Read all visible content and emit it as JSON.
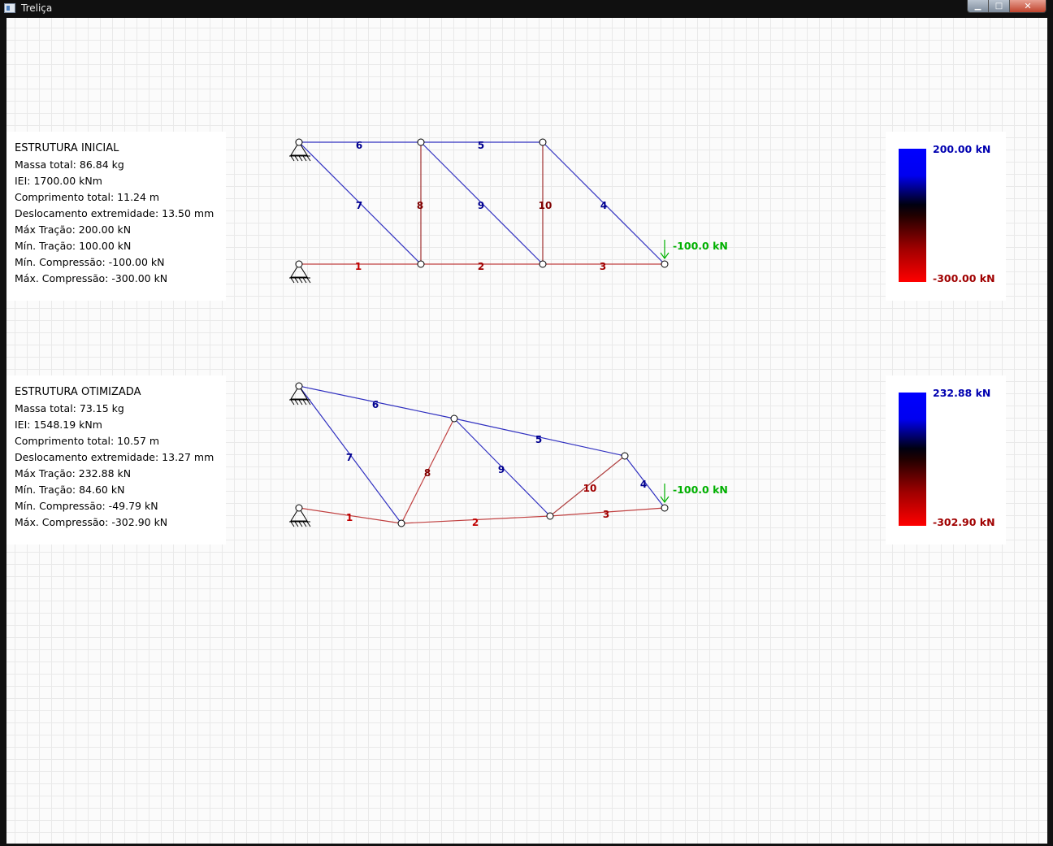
{
  "window": {
    "title": "Treliça"
  },
  "colors": {
    "tension": "#0000b0",
    "compression": "#a00000",
    "load": "#00b000"
  },
  "initial": {
    "heading": "ESTRUTURA INICIAL",
    "stats": [
      "Massa total: 86.84 kg",
      "IEI: 1700.00 kNm",
      "Comprimento total: 11.24 m",
      "Deslocamento extremidade: 13.50 mm",
      "Máx Tração: 200.00 kN",
      "Mín. Tração: 100.00 kN",
      "Mín. Compressão: -100.00 kN",
      "Máx. Compressão: -300.00 kN"
    ],
    "legend": {
      "max": "200.00 kN",
      "min": "-300.00 kN"
    },
    "load_label": "-100.0 kN",
    "members": [
      {
        "id": "1",
        "state": "compression"
      },
      {
        "id": "2",
        "state": "compression"
      },
      {
        "id": "3",
        "state": "compression"
      },
      {
        "id": "4",
        "state": "tension"
      },
      {
        "id": "5",
        "state": "tension"
      },
      {
        "id": "6",
        "state": "tension"
      },
      {
        "id": "7",
        "state": "tension"
      },
      {
        "id": "8",
        "state": "compression"
      },
      {
        "id": "9",
        "state": "tension"
      },
      {
        "id": "10",
        "state": "compression"
      }
    ]
  },
  "optimized": {
    "heading": "ESTRUTURA OTIMIZADA",
    "stats": [
      "Massa total: 73.15 kg",
      "IEI: 1548.19 kNm",
      "Comprimento total: 10.57 m",
      "Deslocamento extremidade: 13.27 mm",
      "Máx Tração: 232.88 kN",
      "Mín. Tração: 84.60 kN",
      "Mín. Compressão: -49.79 kN",
      "Máx. Compressão: -302.90 kN"
    ],
    "legend": {
      "max": "232.88 kN",
      "min": "-302.90 kN"
    },
    "load_label": "-100.0 kN",
    "members": [
      {
        "id": "1",
        "state": "compression"
      },
      {
        "id": "2",
        "state": "compression"
      },
      {
        "id": "3",
        "state": "compression"
      },
      {
        "id": "4",
        "state": "tension"
      },
      {
        "id": "5",
        "state": "tension"
      },
      {
        "id": "6",
        "state": "tension"
      },
      {
        "id": "7",
        "state": "tension"
      },
      {
        "id": "8",
        "state": "compression"
      },
      {
        "id": "9",
        "state": "tension"
      },
      {
        "id": "10",
        "state": "compression"
      }
    ]
  }
}
